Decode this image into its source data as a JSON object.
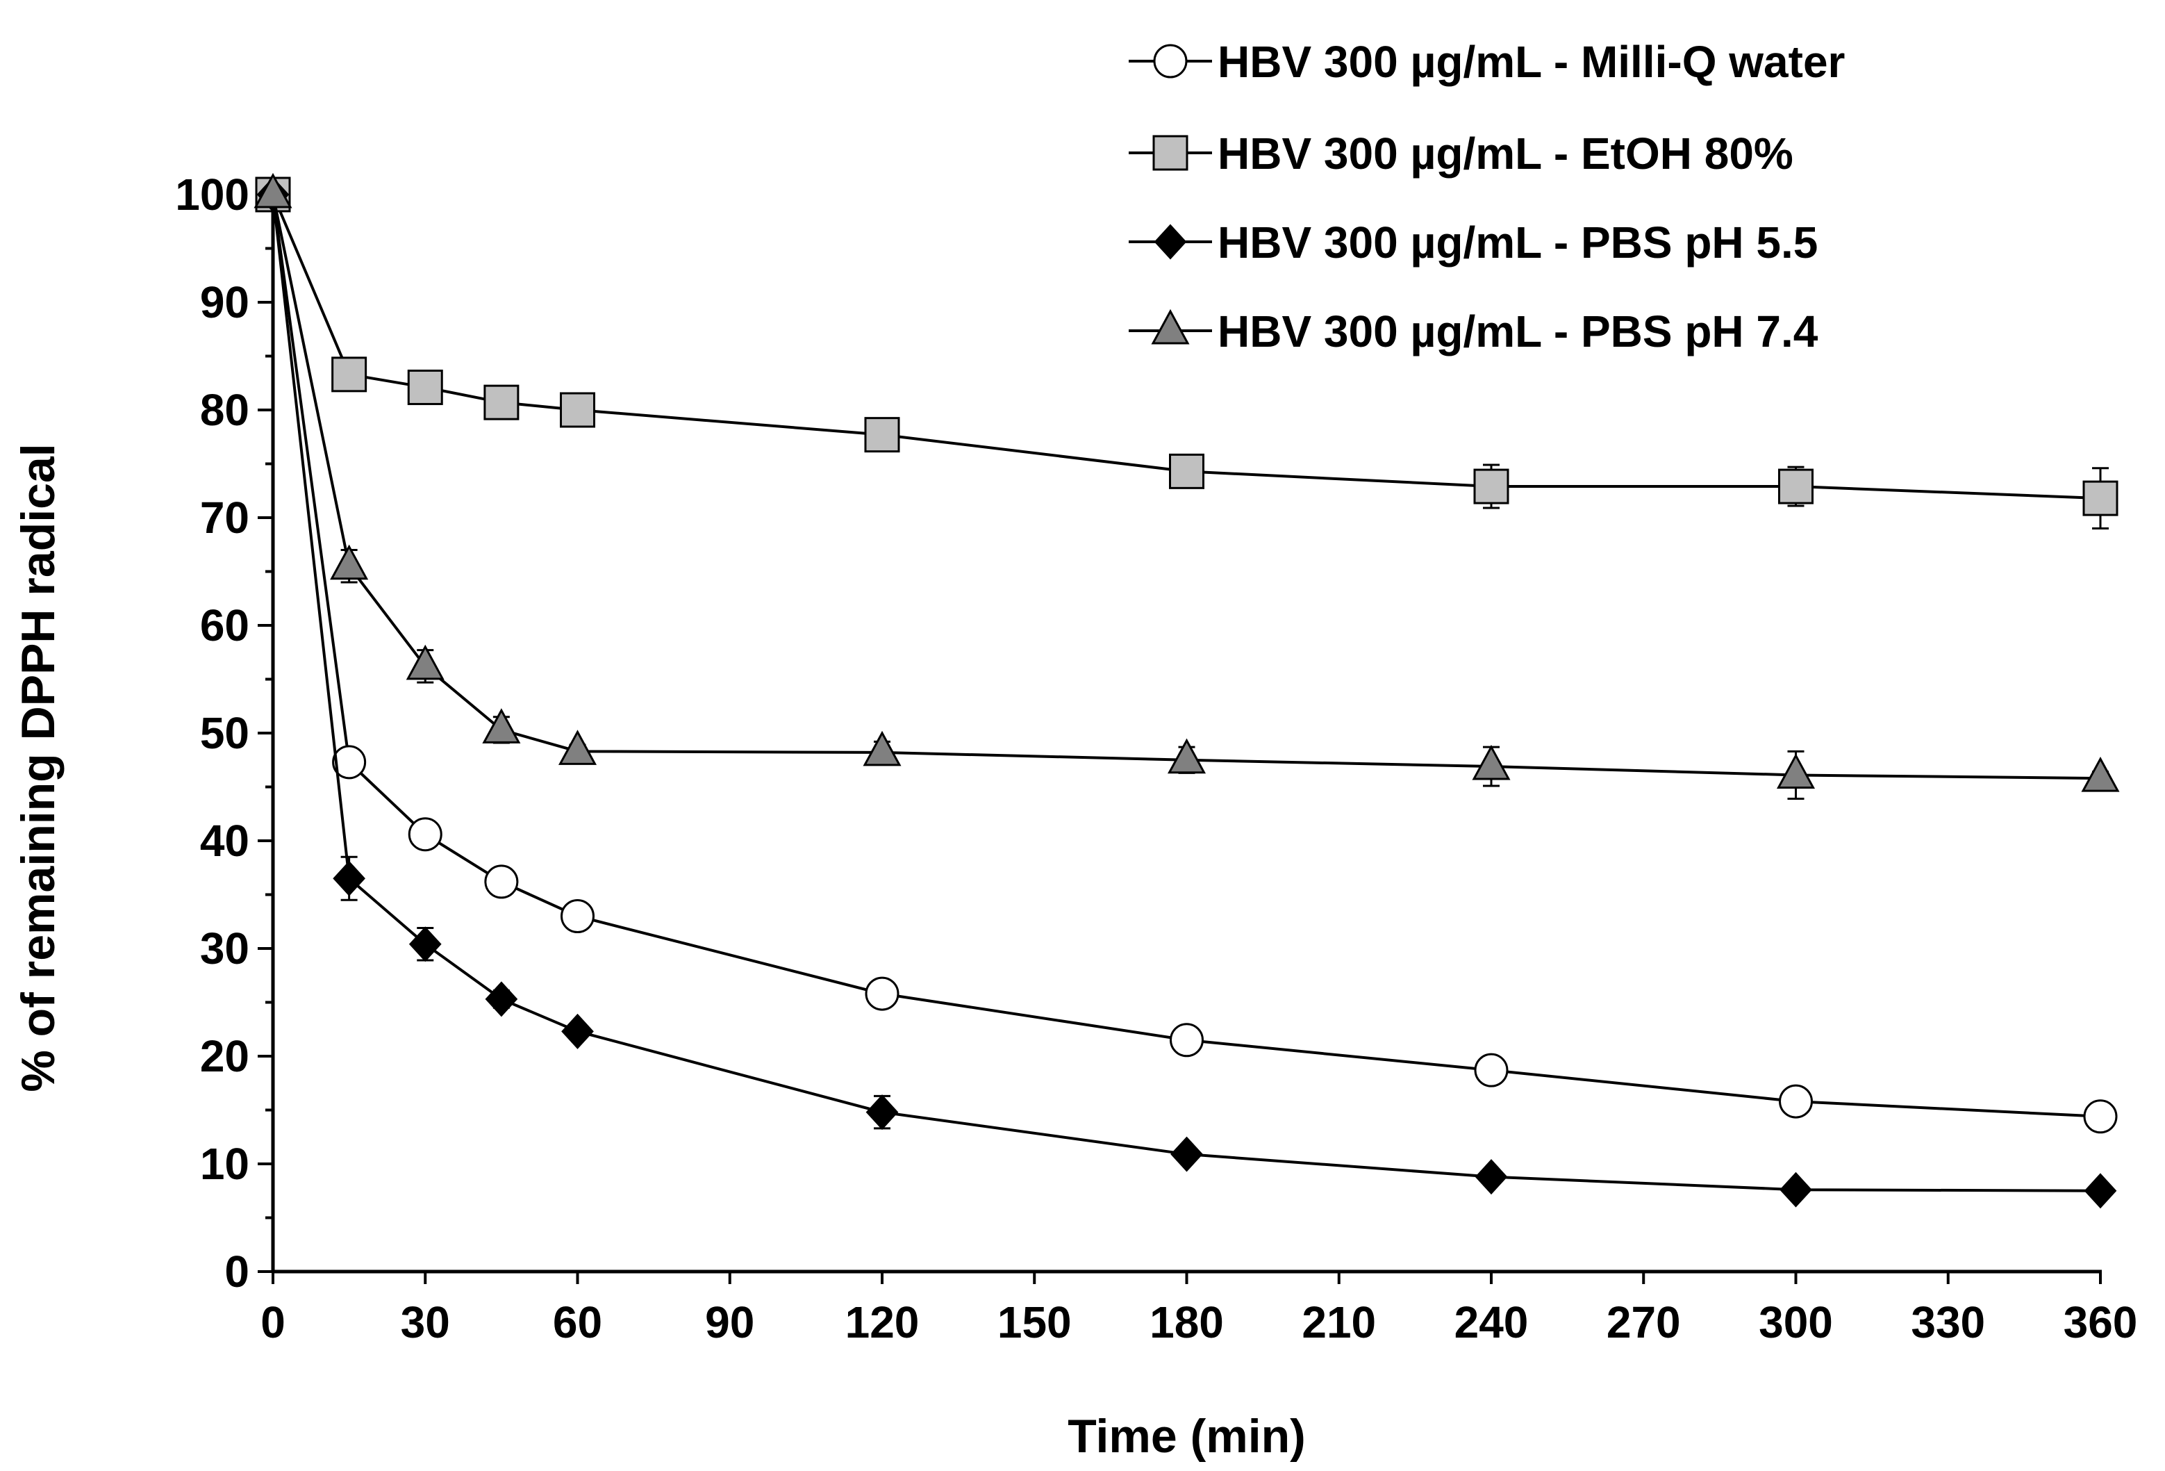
{
  "chart_data": {
    "type": "line",
    "title": "",
    "xlabel": "Time (min)",
    "ylabel": "% of remaining DPPH radical",
    "xlim": [
      0,
      360
    ],
    "ylim": [
      0,
      100
    ],
    "x_ticks": [
      0,
      30,
      60,
      90,
      120,
      150,
      180,
      210,
      240,
      270,
      300,
      330,
      360
    ],
    "y_ticks": [
      0,
      10,
      20,
      30,
      40,
      50,
      60,
      70,
      80,
      90,
      100
    ],
    "x": [
      0,
      15,
      30,
      45,
      60,
      120,
      180,
      240,
      300,
      360
    ],
    "grid": false,
    "legend_position": "top-right",
    "series": [
      {
        "name": "HBV 300 µg/mL - Milli-Q water",
        "marker": "circle",
        "fill": "#ffffff",
        "values": [
          100,
          47.3,
          40.6,
          36.2,
          33.0,
          25.8,
          21.5,
          18.7,
          15.8,
          14.4
        ],
        "errors": [
          0,
          0.8,
          0.8,
          0.8,
          0.6,
          0.6,
          0.5,
          0.5,
          0.5,
          0.5
        ]
      },
      {
        "name": "HBV 300 µg/mL - EtOH 80%",
        "marker": "square",
        "fill": "#c0c0c0",
        "values": [
          100,
          83.3,
          82.1,
          80.7,
          80.0,
          77.7,
          74.3,
          72.9,
          72.9,
          71.8
        ],
        "errors": [
          0,
          0.6,
          0.6,
          0.6,
          0.6,
          0.8,
          0.8,
          2.0,
          1.8,
          2.8
        ]
      },
      {
        "name": "HBV 300 µg/mL - PBS pH 5.5",
        "marker": "diamond",
        "fill": "#000000",
        "values": [
          100,
          36.5,
          30.4,
          25.3,
          22.3,
          14.8,
          10.9,
          8.8,
          7.6,
          7.5
        ],
        "errors": [
          0,
          2.0,
          1.5,
          0.8,
          0.6,
          1.5,
          0.6,
          0.5,
          0.4,
          0.3
        ]
      },
      {
        "name": "HBV 300 µg/mL - PBS pH 7.4",
        "marker": "triangle",
        "fill": "#808080",
        "values": [
          100,
          65.5,
          56.2,
          50.3,
          48.3,
          48.2,
          47.5,
          46.9,
          46.1,
          45.8
        ],
        "errors": [
          0,
          1.5,
          1.5,
          1.2,
          0.6,
          1.0,
          1.2,
          1.8,
          2.2,
          0.6
        ]
      }
    ]
  }
}
